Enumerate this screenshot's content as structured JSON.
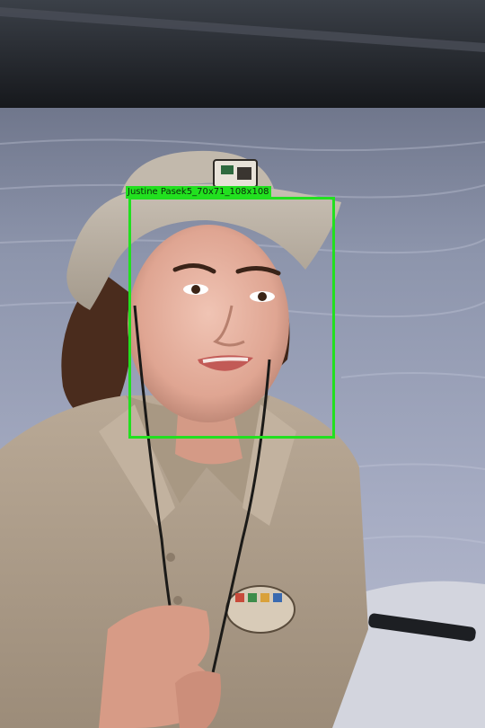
{
  "annotation": {
    "label": "Justine Pasek5_70x71_108x108",
    "color": "#22e01f"
  },
  "scene": {
    "subject": "woman in khaki hat and polo shirt on a boat",
    "background": "water at dusk"
  }
}
